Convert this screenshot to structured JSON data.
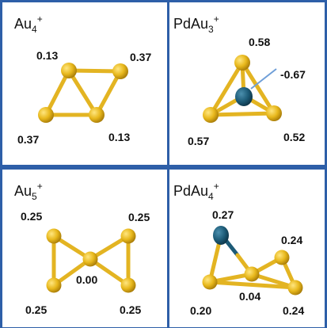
{
  "panels": [
    {
      "title": {
        "base": "Au",
        "n": "4",
        "charge": "+"
      },
      "atoms": [
        {
          "label": "0.13"
        },
        {
          "label": "0.37"
        },
        {
          "label": "0.37"
        },
        {
          "label": "0.13"
        }
      ]
    },
    {
      "title": {
        "prefix": "PdAu",
        "n": "3",
        "charge": "+"
      },
      "atoms": [
        {
          "label": "0.58"
        },
        {
          "label": "-0.67"
        },
        {
          "label": "0.57"
        },
        {
          "label": "0.52"
        }
      ]
    },
    {
      "title": {
        "base": "Au",
        "n": "5",
        "charge": "+"
      },
      "atoms": [
        {
          "label": "0.25"
        },
        {
          "label": "0.25"
        },
        {
          "label": "0.00"
        },
        {
          "label": "0.25"
        },
        {
          "label": "0.25"
        }
      ]
    },
    {
      "title": {
        "prefix": "PdAu",
        "n": "4",
        "charge": "+"
      },
      "atoms": [
        {
          "label": "0.27"
        },
        {
          "label": "0.24"
        },
        {
          "label": "0.04"
        },
        {
          "label": "0.20"
        },
        {
          "label": "0.24"
        }
      ]
    }
  ],
  "colors": {
    "frame": "#2e5fa8",
    "gold_bond": "#e3b422",
    "gold_atom": "#e8b81c",
    "gold_atom_dark": "#b98a0a",
    "pd_atom": "#1c5a76",
    "pointer": "#6f9fd8"
  }
}
